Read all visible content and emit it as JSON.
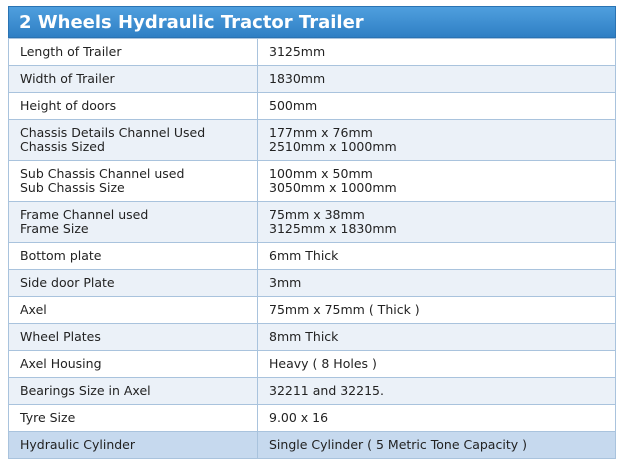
{
  "title": "2 Wheels Hydraulic Tractor Trailer",
  "rows": [
    {
      "label": "Length of Trailer",
      "value": "3125mm"
    },
    {
      "label": "Width of Trailer",
      "value": "1830mm"
    },
    {
      "label": "Height of doors",
      "value": "500mm"
    },
    {
      "label": "Chassis Details Channel Used\nChassis Sized",
      "value": "177mm x 76mm\n2510mm x 1000mm"
    },
    {
      "label": "Sub Chassis Channel used\nSub Chassis Size",
      "value": "100mm x 50mm\n3050mm x 1000mm"
    },
    {
      "label": "Frame Channel used\nFrame Size",
      "value": "75mm x 38mm\n3125mm x 1830mm"
    },
    {
      "label": "Bottom plate",
      "value": "6mm Thick"
    },
    {
      "label": "Side door Plate",
      "value": "3mm"
    },
    {
      "label": "Axel",
      "value": "75mm x 75mm ( Thick )"
    },
    {
      "label": "Wheel Plates",
      "value": "8mm Thick"
    },
    {
      "label": "Axel Housing",
      "value": "Heavy ( 8 Holes )"
    },
    {
      "label": "Bearings Size in Axel",
      "value": "32211 and 32215."
    },
    {
      "label": "Tyre Size",
      "value": "9.00 x 16"
    },
    {
      "label": "Hydraulic Cylinder",
      "value": "Single Cylinder ( 5 Metric Tone Capacity )"
    }
  ],
  "colors": {
    "header": "#3a8ad0",
    "row_alt": "#ebf1f8",
    "row_highlight": "#c6d9ee",
    "border": "#a9c3dd"
  }
}
